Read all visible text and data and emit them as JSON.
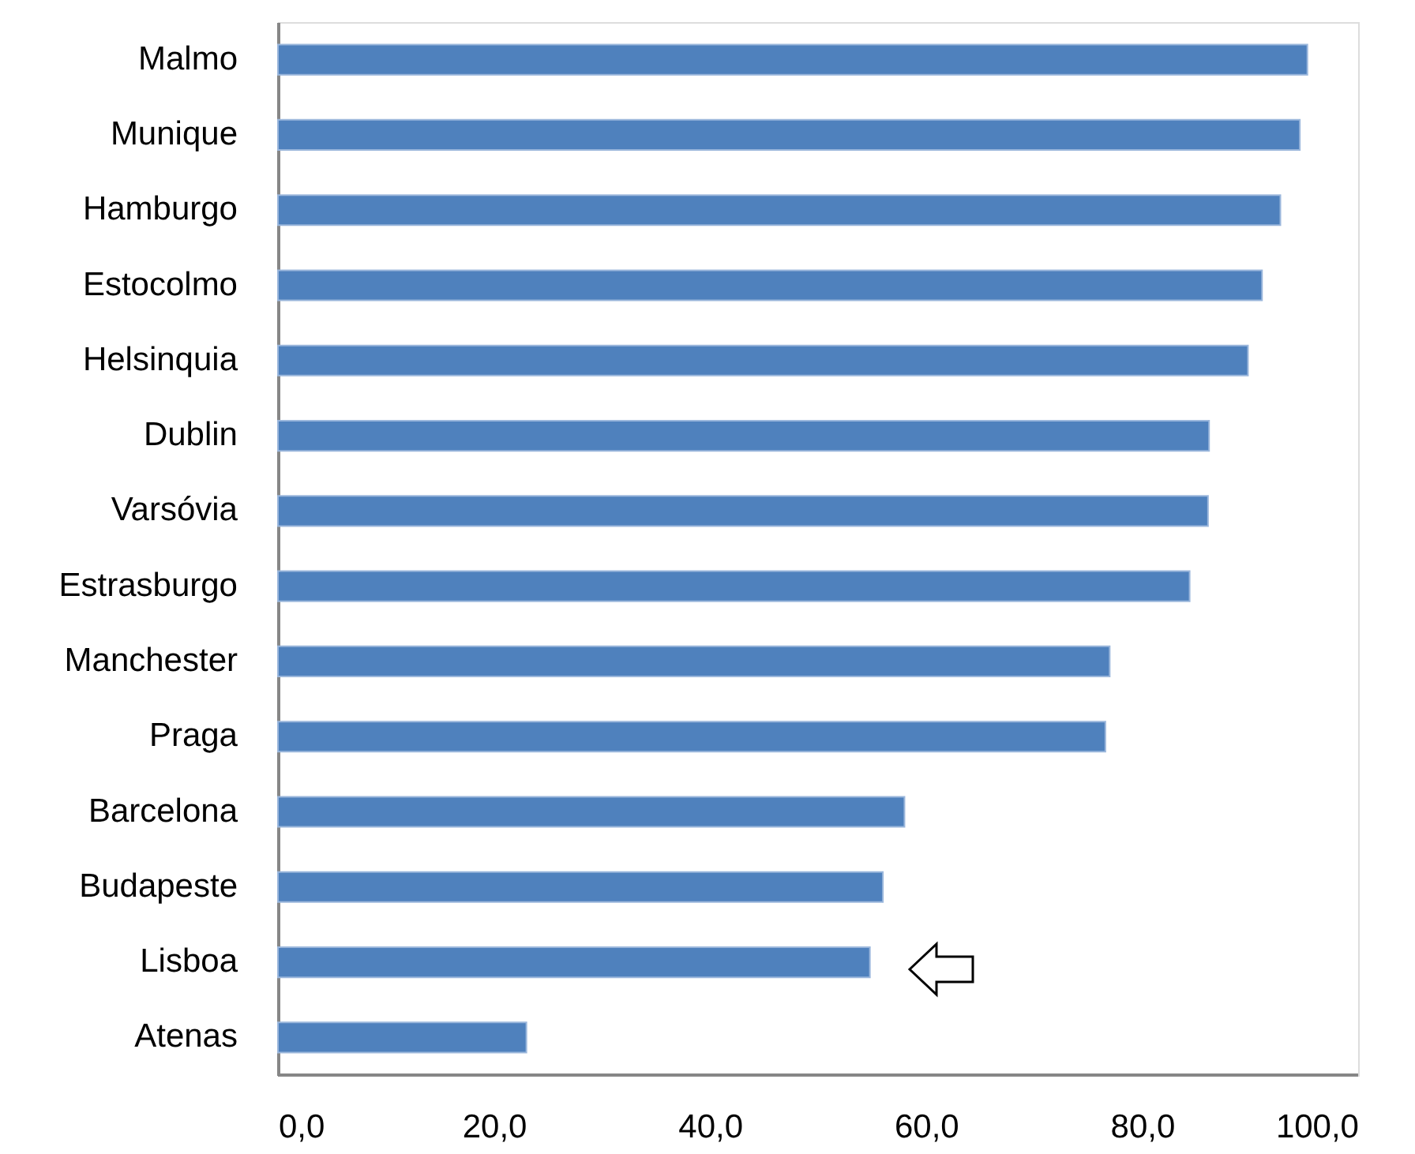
{
  "chart_data": {
    "type": "bar",
    "orientation": "horizontal",
    "categories": [
      "Malmo",
      "Munique",
      "Hamburgo",
      "Estocolmo",
      "Helsinquia",
      "Dublin",
      "Varsóvia",
      "Estrasburgo",
      "Manchester",
      "Praga",
      "Barcelona",
      "Budapeste",
      "Lisboa",
      "Atenas"
    ],
    "values": [
      95.3,
      94.6,
      92.8,
      91.1,
      89.8,
      86.2,
      86.1,
      84.4,
      77.0,
      76.6,
      58.0,
      56.0,
      54.8,
      23.0
    ],
    "color": "#4f81bd",
    "xlim": [
      0,
      100
    ],
    "xticks": [
      {
        "value": 0,
        "label": "0,0"
      },
      {
        "value": 20,
        "label": "20,0"
      },
      {
        "value": 40,
        "label": "40,0"
      },
      {
        "value": 60,
        "label": "60,0"
      },
      {
        "value": 80,
        "label": "80,0"
      },
      {
        "value": 100,
        "label": "100,0"
      }
    ],
    "grid": false
  }
}
